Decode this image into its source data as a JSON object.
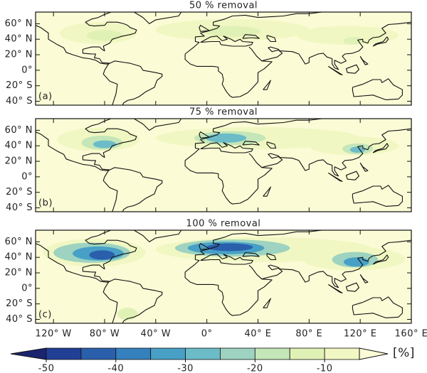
{
  "panels": [
    {
      "title": "50 % removal",
      "label": "(a)"
    },
    {
      "title": "75 % removal",
      "label": "(b)"
    },
    {
      "title": "100 % removal",
      "label": "(c)"
    }
  ],
  "lat_ticks": [
    {
      "value": 60,
      "label": "60° N"
    },
    {
      "value": 40,
      "label": "40° N"
    },
    {
      "value": 20,
      "label": "20° N"
    },
    {
      "value": 0,
      "label": "0°"
    },
    {
      "value": -20,
      "label": "20° S"
    },
    {
      "value": -40,
      "label": "40° S"
    }
  ],
  "lon_ticks": [
    {
      "value": -120,
      "label": "120° W"
    },
    {
      "value": -80,
      "label": "80° W"
    },
    {
      "value": -40,
      "label": "40° W"
    },
    {
      "value": 0,
      "label": "0°"
    },
    {
      "value": 40,
      "label": "40° E"
    },
    {
      "value": 80,
      "label": "80° E"
    },
    {
      "value": 120,
      "label": "120° E"
    },
    {
      "value": 160,
      "label": "160° E"
    }
  ],
  "colorbar": {
    "bounds": [
      -50,
      -45,
      -40,
      -35,
      -30,
      -25,
      -20,
      -15,
      -10,
      -5
    ],
    "colors": [
      "#1b2470",
      "#223f96",
      "#2a5fab",
      "#3581bd",
      "#48a0c6",
      "#6cbcc8",
      "#9dd3c0",
      "#c4e6b8",
      "#e0f1b6",
      "#f1f7c2",
      "#fbfbd6"
    ],
    "ticks": [
      -50,
      -40,
      -30,
      -20,
      -10
    ],
    "unit": "[%]"
  }
}
